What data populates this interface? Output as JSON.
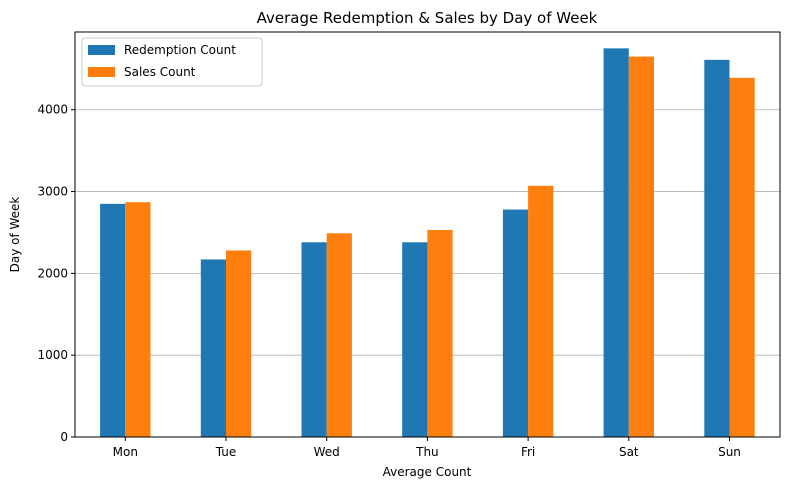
{
  "chart_data": {
    "type": "bar",
    "title": "Average Redemption & Sales by Day of Week",
    "xlabel": "Average Count",
    "ylabel": "Day of Week",
    "categories": [
      "Mon",
      "Tue",
      "Wed",
      "Thu",
      "Fri",
      "Sat",
      "Sun"
    ],
    "series": [
      {
        "name": "Redemption Count",
        "color": "#1f77b4",
        "values": [
          2850,
          2170,
          2380,
          2380,
          2780,
          4750,
          4610
        ]
      },
      {
        "name": "Sales Count",
        "color": "#ff7f0e",
        "values": [
          2870,
          2280,
          2490,
          2530,
          3070,
          4650,
          4390
        ]
      }
    ],
    "ylim": [
      0,
      4950
    ],
    "yticks": [
      0,
      1000,
      2000,
      3000,
      4000
    ],
    "grid": "y",
    "legend": "top-left"
  }
}
